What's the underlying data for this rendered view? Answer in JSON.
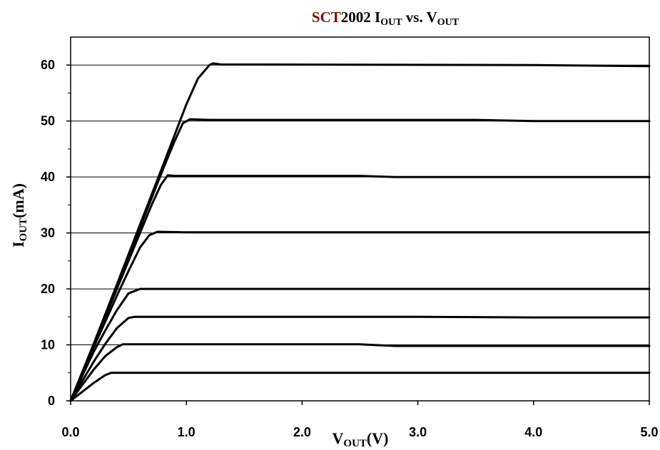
{
  "chart_data": {
    "type": "line",
    "title": {
      "brand": "SCT",
      "model": "2002 I",
      "sub1": "OUT",
      "vs": " vs. V",
      "sub2": "OUT"
    },
    "xlabel": {
      "main": "V",
      "sub": "OUT",
      "unit": "(V)"
    },
    "ylabel": {
      "main": "I",
      "sub": "OUT",
      "unit": "(mA)"
    },
    "xlim": [
      0,
      5
    ],
    "ylim": [
      0,
      65
    ],
    "x_ticks": [
      0,
      1,
      2,
      3,
      4,
      5
    ],
    "x_tick_labels": [
      "0.0",
      "1.0",
      "2.0",
      "3.0",
      "4.0",
      "5.0"
    ],
    "y_ticks": [
      0,
      10,
      20,
      30,
      40,
      50,
      60
    ],
    "y_tick_labels": [
      "0",
      "10",
      "20",
      "30",
      "40",
      "50",
      "60"
    ],
    "grid": "horizontal",
    "line_color": "#000000",
    "series": [
      {
        "points": [
          [
            0,
            0
          ],
          [
            0.1,
            1.6
          ],
          [
            0.2,
            3.2
          ],
          [
            0.3,
            4.6
          ],
          [
            0.35,
            5.0
          ],
          [
            1.0,
            5.0
          ],
          [
            2.0,
            5.0
          ],
          [
            3.0,
            5.0
          ],
          [
            4.0,
            5.0
          ],
          [
            5.0,
            5.0
          ]
        ]
      },
      {
        "points": [
          [
            0,
            0
          ],
          [
            0.1,
            2.8
          ],
          [
            0.2,
            5.6
          ],
          [
            0.3,
            8.0
          ],
          [
            0.4,
            9.6
          ],
          [
            0.45,
            10.1
          ],
          [
            1.0,
            10.1
          ],
          [
            2.0,
            10.1
          ],
          [
            2.5,
            10.1
          ],
          [
            2.8,
            9.8
          ],
          [
            4.0,
            9.8
          ],
          [
            5.0,
            9.8
          ]
        ]
      },
      {
        "points": [
          [
            0,
            0
          ],
          [
            0.1,
            3.5
          ],
          [
            0.2,
            7.0
          ],
          [
            0.3,
            10.2
          ],
          [
            0.4,
            13.0
          ],
          [
            0.5,
            14.8
          ],
          [
            0.55,
            15.0
          ],
          [
            1.0,
            15.0
          ],
          [
            2.0,
            15.0
          ],
          [
            3.0,
            15.0
          ],
          [
            4.0,
            14.9
          ],
          [
            5.0,
            14.9
          ]
        ]
      },
      {
        "points": [
          [
            0,
            0
          ],
          [
            0.1,
            4.4
          ],
          [
            0.2,
            8.8
          ],
          [
            0.3,
            12.6
          ],
          [
            0.4,
            16.2
          ],
          [
            0.5,
            19.2
          ],
          [
            0.6,
            20.0
          ],
          [
            1.0,
            20.0
          ],
          [
            2.0,
            20.0
          ],
          [
            3.0,
            20.0
          ],
          [
            4.0,
            20.0
          ],
          [
            5.0,
            20.0
          ]
        ]
      },
      {
        "points": [
          [
            0,
            0
          ],
          [
            0.1,
            4.8
          ],
          [
            0.2,
            9.6
          ],
          [
            0.3,
            14.2
          ],
          [
            0.4,
            18.8
          ],
          [
            0.5,
            23.2
          ],
          [
            0.6,
            27.4
          ],
          [
            0.68,
            29.6
          ],
          [
            0.75,
            30.2
          ],
          [
            1.0,
            30.1
          ],
          [
            2.0,
            30.1
          ],
          [
            3.0,
            30.1
          ],
          [
            4.0,
            30.1
          ],
          [
            5.0,
            30.1
          ]
        ]
      },
      {
        "points": [
          [
            0,
            0
          ],
          [
            0.2,
            10.0
          ],
          [
            0.4,
            20.0
          ],
          [
            0.6,
            30.0
          ],
          [
            0.7,
            35.0
          ],
          [
            0.78,
            38.6
          ],
          [
            0.84,
            40.3
          ],
          [
            0.9,
            40.2
          ],
          [
            2.5,
            40.2
          ],
          [
            2.8,
            40.0
          ],
          [
            5.0,
            40.0
          ]
        ]
      },
      {
        "points": [
          [
            0,
            0
          ],
          [
            0.2,
            10.0
          ],
          [
            0.4,
            20.5
          ],
          [
            0.6,
            31.0
          ],
          [
            0.8,
            41.5
          ],
          [
            0.9,
            46.5
          ],
          [
            0.97,
            49.6
          ],
          [
            1.03,
            50.3
          ],
          [
            1.2,
            50.2
          ],
          [
            3.5,
            50.2
          ],
          [
            4.0,
            50.0
          ],
          [
            5.0,
            50.0
          ]
        ]
      },
      {
        "points": [
          [
            0,
            0
          ],
          [
            0.2,
            10.2
          ],
          [
            0.4,
            20.8
          ],
          [
            0.6,
            31.5
          ],
          [
            0.8,
            42.2
          ],
          [
            1.0,
            53.0
          ],
          [
            1.1,
            57.6
          ],
          [
            1.2,
            60.0
          ],
          [
            1.23,
            60.3
          ],
          [
            1.3,
            60.1
          ],
          [
            4.0,
            60.0
          ],
          [
            5.0,
            59.8
          ]
        ]
      }
    ]
  }
}
